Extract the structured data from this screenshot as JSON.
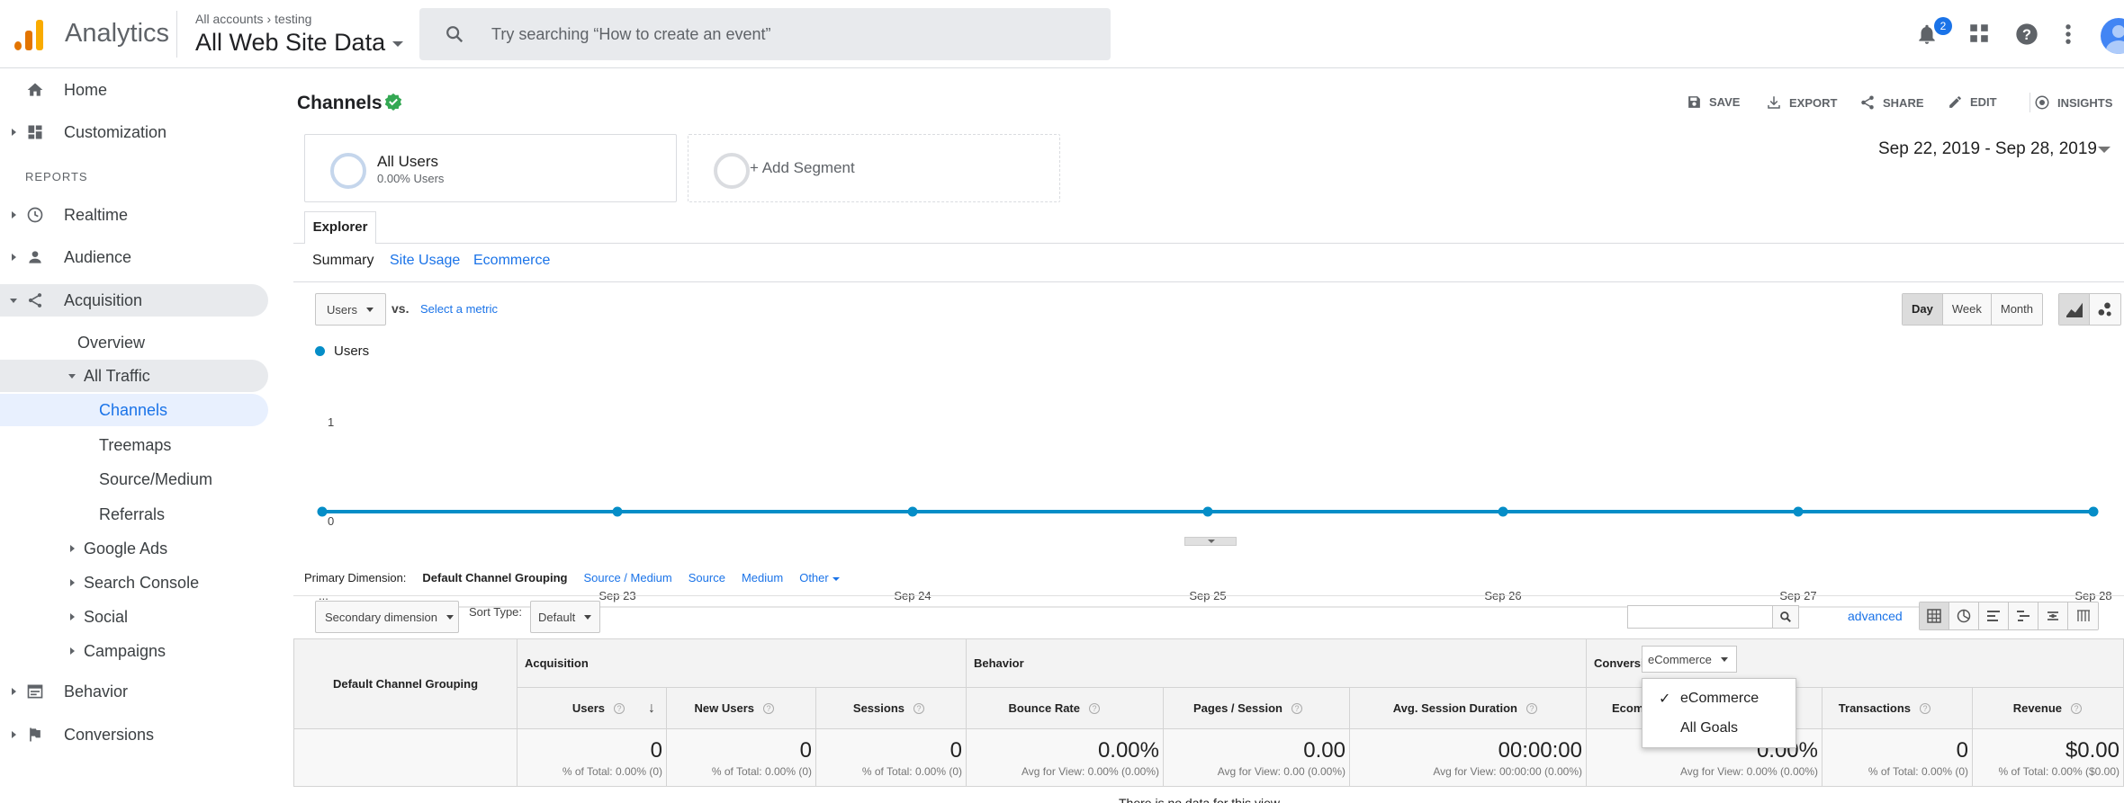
{
  "topbar": {
    "app_title": "Analytics",
    "breadcrumb": {
      "account": "All accounts",
      "property": "testing"
    },
    "view_name": "All Web Site Data",
    "search_placeholder": "Try searching “How to create an event”",
    "notification_count": "2"
  },
  "sidebar": {
    "home": "Home",
    "customization": "Customization",
    "reports_label": "REPORTS",
    "realtime": "Realtime",
    "audience": "Audience",
    "acquisition": "Acquisition",
    "overview": "Overview",
    "all_traffic": "All Traffic",
    "channels": "Channels",
    "treemaps": "Treemaps",
    "source_medium": "Source/Medium",
    "referrals": "Referrals",
    "google_ads": "Google Ads",
    "search_console": "Search Console",
    "social": "Social",
    "campaigns": "Campaigns",
    "behavior": "Behavior",
    "conversions": "Conversions"
  },
  "report": {
    "title": "Channels",
    "tools": {
      "save": "SAVE",
      "export": "EXPORT",
      "share": "SHARE",
      "edit": "EDIT",
      "insights": "INSIGHTS"
    },
    "segments": {
      "all_users": "All Users",
      "all_users_sub": "0.00% Users",
      "add_segment": "+ Add Segment"
    },
    "date_range": "Sep 22, 2019 - Sep 28, 2019",
    "explorer_tab": "Explorer",
    "subtabs": {
      "summary": "Summary",
      "site_usage": "Site Usage",
      "ecommerce": "Ecommerce"
    },
    "metric_select": "Users",
    "vs": "vs.",
    "select_metric": "Select a metric",
    "granularity": {
      "day": "Day",
      "week": "Week",
      "month": "Month"
    }
  },
  "chart_data": {
    "type": "line",
    "series": [
      {
        "name": "Users",
        "values": [
          0,
          0,
          0,
          0,
          0,
          0,
          0
        ]
      }
    ],
    "x": [
      "...",
      "Sep 23",
      "Sep 24",
      "Sep 25",
      "Sep 26",
      "Sep 27",
      "Sep 28"
    ],
    "yticks": [
      "1",
      "0"
    ],
    "ylim": [
      0,
      1
    ],
    "color": "#058dc7",
    "grid": false
  },
  "dimensions": {
    "label": "Primary Dimension:",
    "current": "Default Channel Grouping",
    "source_medium": "Source / Medium",
    "source": "Source",
    "medium": "Medium",
    "other": "Other"
  },
  "table_controls": {
    "secondary_dimension": "Secondary dimension",
    "sort_type_label": "Sort Type:",
    "sort_type_value": "Default",
    "advanced": "advanced"
  },
  "table": {
    "dimension_header": "Default Channel Grouping",
    "groups": {
      "acquisition": "Acquisition",
      "behavior": "Behavior",
      "conversions": "Conversions"
    },
    "conversions_select": "eCommerce",
    "columns": [
      {
        "label": "Users",
        "value": "0",
        "sub": "% of Total: 0.00% (0)"
      },
      {
        "label": "New Users",
        "value": "0",
        "sub": "% of Total: 0.00% (0)"
      },
      {
        "label": "Sessions",
        "value": "0",
        "sub": "% of Total: 0.00% (0)"
      },
      {
        "label": "Bounce Rate",
        "value": "0.00%",
        "sub": "Avg for View: 0.00% (0.00%)"
      },
      {
        "label": "Pages / Session",
        "value": "0.00",
        "sub": "Avg for View: 0.00 (0.00%)"
      },
      {
        "label": "Avg. Session Duration",
        "value": "00:00:00",
        "sub": "Avg for View: 00:00:00 (0.00%)"
      },
      {
        "label": "Ecommerce",
        "value": "0.00%",
        "sub": "Avg for View: 0.00% (0.00%)"
      },
      {
        "label": "Transactions",
        "value": "0",
        "sub": "% of Total: 0.00% (0)"
      },
      {
        "label": "Revenue",
        "value": "$0.00",
        "sub": "% of Total: 0.00% ($0.00)"
      }
    ],
    "no_data": "There is no data for this view."
  },
  "dropdown": {
    "items": [
      "eCommerce",
      "All Goals"
    ],
    "selected": "eCommerce"
  },
  "colors": {
    "accent": "#1a73e8",
    "series": "#058dc7",
    "logo": "#f9ab00"
  }
}
